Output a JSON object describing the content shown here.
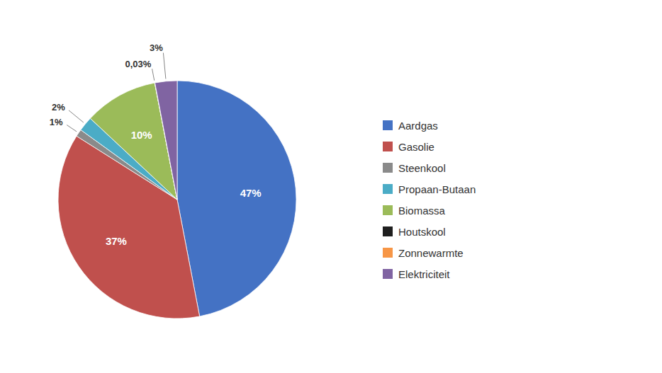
{
  "chart_data": {
    "type": "pie",
    "categories": [
      "Aardgas",
      "Gasolie",
      "Steenkool",
      "Propaan-Butaan",
      "Biomassa",
      "Houtskool",
      "Zonnewarmte",
      "Elektriciteit"
    ],
    "values": [
      47,
      37,
      1,
      2,
      10,
      0.03,
      0.001,
      3
    ],
    "value_labels": [
      "47%",
      "37%",
      "1%",
      "2%",
      "10%",
      "0,03%",
      null,
      "3%"
    ],
    "colors": [
      "#4472C4",
      "#C0504D",
      "#8A8A8A",
      "#4BACC6",
      "#9BBB59",
      "#1F1F1F",
      "#F79646",
      "#8064A2"
    ],
    "data_labels": true,
    "legend": "right"
  }
}
